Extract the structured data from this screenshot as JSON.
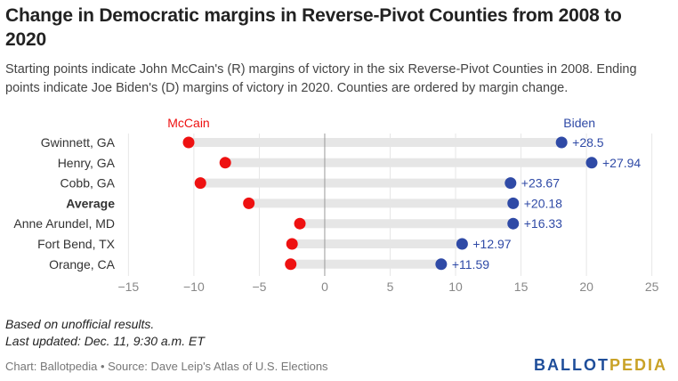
{
  "title": "Change in Democratic margins in Reverse-Pivot Counties from 2008 to 2020",
  "subtitle": "Starting points indicate John McCain's (R) margins of victory in the six Reverse-Pivot Counties in 2008. Ending points indicate Joe Biden's (D) margins of victory in 2020. Counties are ordered by margin change.",
  "notes": {
    "line1": "Based on unofficial results.",
    "line2": "Last updated: Dec. 11, 9:30 a.m. ET"
  },
  "footer": {
    "source": "Chart: Ballotpedia • Source: Dave Leip's Atlas of U.S. Elections",
    "brand_ballot": "BALLOT",
    "brand_pedia": "PEDIA"
  },
  "colors": {
    "mccain": "#ee1111",
    "biden": "#2f4aa6",
    "bar": "#e6e6e6",
    "grid": "#e6e6e6",
    "zero_line": "#999999",
    "brand_blue": "#1f4e9a",
    "brand_gold": "#c9a227"
  },
  "chart_data": {
    "type": "dumbbell",
    "series": [
      {
        "name": "McCain",
        "color": "#ee1111"
      },
      {
        "name": "Biden",
        "color": "#2f4aa6"
      }
    ],
    "categories": [
      "Gwinnett, GA",
      "Henry, GA",
      "Cobb, GA",
      "Average",
      "Anne Arundel, MD",
      "Fort Bend, TX",
      "Orange, CA"
    ],
    "bold_categories": [
      "Average"
    ],
    "start": [
      -10.4,
      -7.6,
      -9.5,
      -5.8,
      -1.9,
      -2.5,
      -2.6
    ],
    "end": [
      18.1,
      20.4,
      14.2,
      14.4,
      14.4,
      10.5,
      8.9
    ],
    "change_labels": [
      "+28.5",
      "+27.94",
      "+23.67",
      "+20.18",
      "+16.33",
      "+12.97",
      "+11.59"
    ],
    "xlim": [
      -15.5,
      25.5
    ],
    "xticks": [
      -15,
      -10,
      -5,
      0,
      5,
      10,
      15,
      20,
      25
    ],
    "xtick_labels": [
      "−15",
      "−10",
      "−5",
      "0",
      "5",
      "10",
      "15",
      "20",
      "25"
    ],
    "grid": true
  }
}
